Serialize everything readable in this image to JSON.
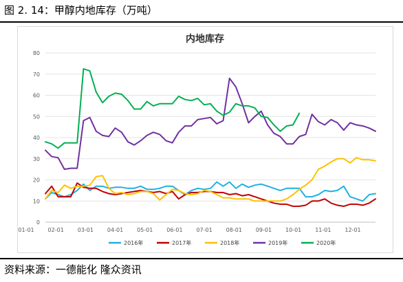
{
  "figure_title": "图 2. 14：甲醇内地库存（万吨）",
  "source": "资料来源：一德能化 隆众资讯",
  "chart_data": {
    "type": "line",
    "title": "内地库存",
    "ylim": [
      0,
      80
    ],
    "yticks": [
      0,
      10,
      20,
      30,
      40,
      50,
      60,
      70,
      80
    ],
    "xticks": [
      "01-01",
      "02-01",
      "03-01",
      "04-01",
      "05-01",
      "06-01",
      "07-01",
      "08-01",
      "09-01",
      "10-01",
      "11-01",
      "12-01"
    ],
    "xrange_week": [
      1,
      53
    ],
    "grid": "horizontal",
    "legend_position": "bottom",
    "series": [
      {
        "name": "2016年",
        "color": "#1fb0e0",
        "weeks": [
          1,
          2,
          3,
          4,
          5,
          6,
          7,
          8,
          9,
          10,
          11,
          12,
          13,
          14,
          15,
          16,
          17,
          18,
          19,
          20,
          21,
          22,
          23,
          24,
          25,
          26,
          27,
          28,
          29,
          30,
          31,
          32,
          33,
          34,
          35,
          36,
          37,
          38,
          39,
          40,
          41,
          42,
          43,
          44,
          45,
          46,
          47,
          48,
          49,
          50,
          51,
          52,
          53
        ],
        "values": [
          11,
          14,
          13,
          12,
          13,
          15,
          18,
          15,
          17,
          17,
          16,
          16.5,
          16.5,
          16,
          16,
          17,
          15.5,
          15.5,
          16,
          17,
          17,
          15,
          13,
          15,
          16,
          15.5,
          16,
          19,
          17,
          19,
          16,
          18,
          16.5,
          17.5,
          18,
          17,
          16,
          15,
          16,
          16,
          16,
          12,
          12,
          13,
          15,
          14.5,
          15,
          17,
          12,
          11,
          10,
          13,
          13.5
        ]
      },
      {
        "name": "2017年",
        "color": "#c00000",
        "weeks": [
          1,
          2,
          3,
          4,
          5,
          6,
          7,
          8,
          9,
          10,
          11,
          12,
          13,
          14,
          15,
          16,
          17,
          18,
          19,
          20,
          21,
          22,
          23,
          24,
          25,
          26,
          27,
          28,
          29,
          30,
          31,
          32,
          33,
          34,
          35,
          36,
          37,
          38,
          39,
          40,
          41,
          42,
          43,
          44,
          45,
          46,
          47,
          48,
          49,
          50,
          51,
          52,
          53
        ],
        "values": [
          13.5,
          17,
          12,
          12,
          12,
          18.5,
          16.5,
          16,
          16,
          14.5,
          13.5,
          13,
          13.5,
          14,
          14.5,
          15,
          14.5,
          14,
          14.5,
          13.5,
          14.5,
          11,
          13,
          14,
          14,
          14.5,
          14.5,
          14,
          14,
          13,
          13.5,
          12.5,
          13,
          12,
          11,
          10,
          9,
          8.5,
          8.5,
          7.5,
          7.5,
          8,
          10,
          10,
          11,
          9,
          8,
          7.5,
          8.5,
          8.5,
          8,
          9,
          11
        ]
      },
      {
        "name": "2018年",
        "color": "#ffc000",
        "weeks": [
          1,
          2,
          3,
          4,
          5,
          6,
          7,
          8,
          9,
          10,
          11,
          12,
          13,
          14,
          15,
          16,
          17,
          18,
          19,
          20,
          21,
          22,
          23,
          24,
          25,
          26,
          27,
          28,
          29,
          30,
          31,
          32,
          33,
          34,
          35,
          36,
          37,
          38,
          39,
          40,
          41,
          42,
          43,
          44,
          45,
          46,
          47,
          48,
          49,
          50,
          51,
          52,
          53
        ],
        "values": [
          11,
          15,
          14,
          17.5,
          16,
          17,
          17,
          17.5,
          21.5,
          22,
          16,
          13.5,
          14,
          13,
          13.5,
          14.5,
          14.5,
          13.5,
          10.5,
          13,
          15.5,
          15,
          13.5,
          13,
          13.5,
          15,
          14.5,
          13,
          11.5,
          11.5,
          11,
          11,
          11,
          10,
          10,
          10,
          10,
          10,
          11,
          13,
          15.5,
          17.5,
          20,
          25,
          26.5,
          28.5,
          30,
          30,
          28,
          30.5,
          29.5,
          29.5,
          29
        ]
      },
      {
        "name": "2019年",
        "color": "#7030a0",
        "weeks": [
          1,
          2,
          3,
          4,
          5,
          6,
          7,
          8,
          9,
          10,
          11,
          12,
          13,
          14,
          15,
          16,
          17,
          18,
          19,
          20,
          21,
          22,
          23,
          24,
          25,
          26,
          27,
          28,
          29,
          30,
          31,
          32,
          33,
          34,
          35,
          36,
          37,
          38,
          39,
          40,
          41,
          42,
          43,
          44,
          45,
          46,
          47,
          48,
          49,
          50,
          51,
          52,
          53
        ],
        "values": [
          34,
          31,
          30.5,
          25,
          25.5,
          25.5,
          48,
          49.5,
          43,
          41,
          40.5,
          44.5,
          42.5,
          38,
          36.5,
          38.5,
          41,
          42.5,
          41.5,
          38.5,
          37.5,
          42.5,
          45.5,
          45.5,
          48.5,
          49,
          49.5,
          46.5,
          48,
          68,
          64,
          56,
          47,
          50,
          52.5,
          46,
          42,
          40.5,
          37,
          37,
          40.5,
          41.5,
          51,
          47.5,
          46,
          48.5,
          47,
          43.5,
          47,
          46,
          45.5,
          44.5,
          43
        ]
      },
      {
        "name": "2020年",
        "color": "#00b050",
        "weeks": [
          1,
          2,
          3,
          4,
          5,
          6,
          7,
          8,
          9,
          10,
          11,
          12,
          13,
          14,
          15,
          16,
          17,
          18,
          19,
          20,
          21,
          22,
          23,
          24,
          25,
          26,
          27,
          28,
          29,
          30,
          31,
          32,
          33,
          34,
          35,
          36,
          37,
          38,
          39,
          40,
          41
        ],
        "values": [
          38,
          37,
          35,
          37.5,
          37.5,
          37.5,
          72.5,
          71.5,
          61.5,
          56.5,
          59.5,
          61,
          60.5,
          57.5,
          53.5,
          53.5,
          57,
          55,
          56,
          56,
          56,
          59.5,
          58,
          57.5,
          58.5,
          55.5,
          56,
          52.5,
          50.5,
          52,
          56,
          55,
          55,
          54,
          50,
          49.5,
          46,
          43,
          45.5,
          46,
          51.5
        ]
      }
    ]
  }
}
